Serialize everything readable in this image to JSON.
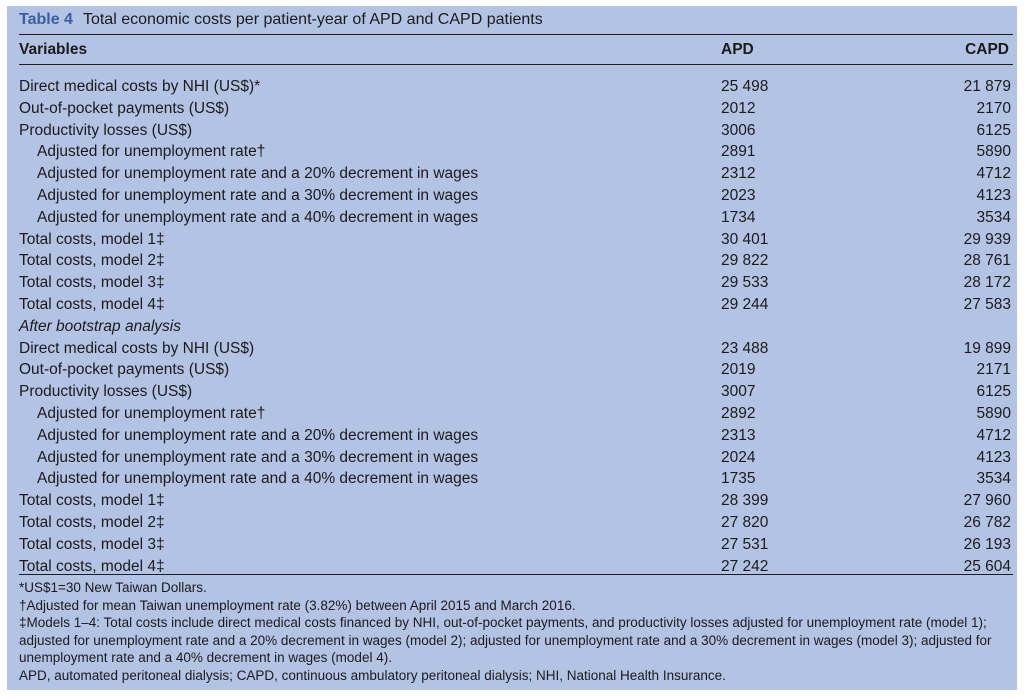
{
  "table": {
    "label": "Table 4",
    "title": "Total economic costs per patient-year of APD and CAPD patients",
    "columns": [
      "Variables",
      "APD",
      "CAPD"
    ],
    "rows": [
      {
        "label": "Direct medical costs by NHI (US$)*",
        "apd": "25 498",
        "capd": "21 879",
        "indent": false,
        "italic": false
      },
      {
        "label": "Out-of-pocket payments (US$)",
        "apd": "2012",
        "capd": "2170",
        "indent": false,
        "italic": false
      },
      {
        "label": "Productivity losses (US$)",
        "apd": "3006",
        "capd": "6125",
        "indent": false,
        "italic": false
      },
      {
        "label": "Adjusted for unemployment rate†",
        "apd": "2891",
        "capd": "5890",
        "indent": true,
        "italic": false
      },
      {
        "label": "Adjusted for unemployment rate and a 20% decrement in wages",
        "apd": "2312",
        "capd": "4712",
        "indent": true,
        "italic": false
      },
      {
        "label": "Adjusted for unemployment rate and a 30% decrement in wages",
        "apd": "2023",
        "capd": "4123",
        "indent": true,
        "italic": false
      },
      {
        "label": "Adjusted for unemployment rate and a 40% decrement in wages",
        "apd": "1734",
        "capd": "3534",
        "indent": true,
        "italic": false
      },
      {
        "label": "Total costs, model 1‡",
        "apd": "30 401",
        "capd": "29 939",
        "indent": false,
        "italic": false
      },
      {
        "label": "Total costs, model 2‡",
        "apd": "29 822",
        "capd": "28 761",
        "indent": false,
        "italic": false
      },
      {
        "label": "Total costs, model 3‡",
        "apd": "29 533",
        "capd": "28 172",
        "indent": false,
        "italic": false
      },
      {
        "label": "Total costs, model 4‡",
        "apd": "29 244",
        "capd": "27 583",
        "indent": false,
        "italic": false
      },
      {
        "label": "After bootstrap analysis",
        "apd": "",
        "capd": "",
        "indent": false,
        "italic": true
      },
      {
        "label": "Direct medical costs by NHI (US$)",
        "apd": "23 488",
        "capd": "19 899",
        "indent": false,
        "italic": false
      },
      {
        "label": "Out-of-pocket payments (US$)",
        "apd": "2019",
        "capd": "2171",
        "indent": false,
        "italic": false
      },
      {
        "label": "Productivity losses (US$)",
        "apd": "3007",
        "capd": "6125",
        "indent": false,
        "italic": false
      },
      {
        "label": "Adjusted for unemployment rate†",
        "apd": "2892",
        "capd": "5890",
        "indent": true,
        "italic": false
      },
      {
        "label": "Adjusted for unemployment rate and a 20% decrement in wages",
        "apd": "2313",
        "capd": "4712",
        "indent": true,
        "italic": false
      },
      {
        "label": "Adjusted for unemployment rate and a 30% decrement in wages",
        "apd": "2024",
        "capd": "4123",
        "indent": true,
        "italic": false
      },
      {
        "label": "Adjusted for unemployment rate and a 40% decrement in wages",
        "apd": "1735",
        "capd": "3534",
        "indent": true,
        "italic": false
      },
      {
        "label": "Total costs, model 1‡",
        "apd": "28 399",
        "capd": "27 960",
        "indent": false,
        "italic": false
      },
      {
        "label": "Total costs, model 2‡",
        "apd": "27 820",
        "capd": "26 782",
        "indent": false,
        "italic": false
      },
      {
        "label": "Total costs, model 3‡",
        "apd": "27 531",
        "capd": "26 193",
        "indent": false,
        "italic": false
      },
      {
        "label": "Total costs, model 4‡",
        "apd": "27 242",
        "capd": "25 604",
        "indent": false,
        "italic": false
      }
    ],
    "footnotes": [
      "*US$1=30 New Taiwan Dollars.",
      "†Adjusted for mean Taiwan unemployment rate (3.82%) between April 2015 and March 2016.",
      "‡Models 1–4: Total costs include direct medical costs financed by NHI, out-of-pocket payments, and productivity losses adjusted for unemployment rate (model 1); adjusted for unemployment rate and a 20% decrement in wages (model 2); adjusted for unemployment rate and a 30% decrement in wages (model 3); adjusted for unemployment rate and a 40% decrement in wages (model 4).",
      "APD, automated peritoneal dialysis; CAPD, continuous ambulatory peritoneal dialysis; NHI, National Health Insurance."
    ]
  }
}
